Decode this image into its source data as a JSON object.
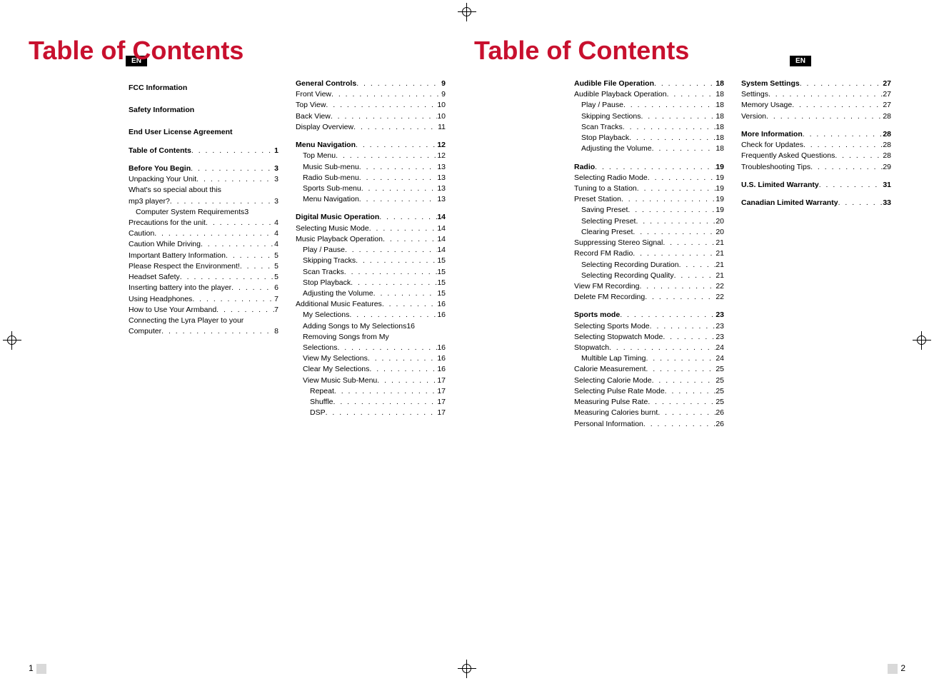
{
  "title": "Table of Contents",
  "en": "EN",
  "pageLeft": "1",
  "pageRight": "2",
  "leftA": [
    {
      "k": "h",
      "t": "FCC Information"
    },
    {
      "k": "sp"
    },
    {
      "k": "h",
      "t": "Safety Information"
    },
    {
      "k": "sp"
    },
    {
      "k": "h",
      "t": "End User License Agreement"
    },
    {
      "k": "sp"
    },
    {
      "k": "hd",
      "t": "Table of Contents",
      "p": "1"
    },
    {
      "k": "sp"
    },
    {
      "k": "hd",
      "t": "Before You Begin",
      "p": "3"
    },
    {
      "k": "e",
      "t": "Unpacking Your Unit",
      "p": "3"
    },
    {
      "k": "e",
      "t": "What's so special about this"
    },
    {
      "k": "e",
      "t": "mp3 player?",
      "p": "3"
    },
    {
      "k": "e",
      "i": 1,
      "t": "Computer System Requirements",
      "p": "3",
      "nodots": true
    },
    {
      "k": "e",
      "t": "Precautions for the unit",
      "p": "4"
    },
    {
      "k": "e",
      "t": "Caution",
      "p": "4"
    },
    {
      "k": "e",
      "t": "Caution While Driving",
      "p": "4"
    },
    {
      "k": "e",
      "t": "Important Battery Information",
      "p": "5"
    },
    {
      "k": "e",
      "t": "Please Respect the Environment!",
      "p": "5"
    },
    {
      "k": "e",
      "t": "Headset Safety",
      "p": "5"
    },
    {
      "k": "e",
      "t": "Inserting battery into the player",
      "p": "6"
    },
    {
      "k": "e",
      "t": "Using Headphones",
      "p": "7"
    },
    {
      "k": "e",
      "t": "How to Use Your Armband",
      "p": "7"
    },
    {
      "k": "e",
      "t": "Connecting the Lyra Player to your"
    },
    {
      "k": "e",
      "t": "Computer",
      "p": "8"
    }
  ],
  "leftB": [
    {
      "k": "hd",
      "t": "General Controls",
      "p": "9"
    },
    {
      "k": "e",
      "t": "Front View",
      "p": "9"
    },
    {
      "k": "e",
      "t": "Top View",
      "p": "10"
    },
    {
      "k": "e",
      "t": "Back View",
      "p": "10"
    },
    {
      "k": "e",
      "t": "Display Overview",
      "p": "11"
    },
    {
      "k": "sp"
    },
    {
      "k": "hd",
      "t": "Menu Navigation",
      "p": "12"
    },
    {
      "k": "e",
      "i": 1,
      "t": "Top Menu",
      "p": "12"
    },
    {
      "k": "e",
      "i": 1,
      "t": "Music Sub-menu",
      "p": "13"
    },
    {
      "k": "e",
      "i": 1,
      "t": "Radio Sub-menu",
      "p": "13"
    },
    {
      "k": "e",
      "i": 1,
      "t": "Sports Sub-menu",
      "p": "13"
    },
    {
      "k": "e",
      "i": 1,
      "t": "Menu Navigation",
      "p": "13"
    },
    {
      "k": "sp"
    },
    {
      "k": "hd",
      "t": "Digital Music Operation",
      "p": "14"
    },
    {
      "k": "e",
      "t": "Selecting Music Mode",
      "p": "14"
    },
    {
      "k": "e",
      "t": "Music Playback Operation",
      "p": "14"
    },
    {
      "k": "e",
      "i": 1,
      "t": "Play / Pause",
      "p": "14"
    },
    {
      "k": "e",
      "i": 1,
      "t": "Skipping Tracks",
      "p": "15"
    },
    {
      "k": "e",
      "i": 1,
      "t": "Scan Tracks",
      "p": "15"
    },
    {
      "k": "e",
      "i": 1,
      "t": "Stop Playback",
      "p": "15"
    },
    {
      "k": "e",
      "i": 1,
      "t": "Adjusting the Volume",
      "p": "15"
    },
    {
      "k": "e",
      "t": "Additional Music Features",
      "p": "16"
    },
    {
      "k": "e",
      "i": 1,
      "t": "My Selections",
      "p": "16"
    },
    {
      "k": "e",
      "i": 1,
      "t": "Adding Songs to My Selections",
      "p": "16",
      "nodots": true
    },
    {
      "k": "e",
      "i": 1,
      "t": "Removing Songs from My"
    },
    {
      "k": "e",
      "i": 1,
      "t": "Selections",
      "p": "16"
    },
    {
      "k": "e",
      "i": 1,
      "t": "View My Selections",
      "p": "16"
    },
    {
      "k": "e",
      "i": 1,
      "t": "Clear My Selections",
      "p": "16"
    },
    {
      "k": "e",
      "i": 1,
      "t": "View Music Sub-Menu",
      "p": "17"
    },
    {
      "k": "e",
      "i": 2,
      "t": "Repeat",
      "p": "17"
    },
    {
      "k": "e",
      "i": 2,
      "t": "Shuffle",
      "p": "17"
    },
    {
      "k": "e",
      "i": 2,
      "t": "DSP",
      "p": "17"
    }
  ],
  "rightA": [
    {
      "k": "hd",
      "t": "Audible File Operation",
      "p": "18"
    },
    {
      "k": "e",
      "t": "Audible Playback Operation",
      "p": "18"
    },
    {
      "k": "e",
      "i": 1,
      "t": "Play / Pause",
      "p": "18"
    },
    {
      "k": "e",
      "i": 1,
      "t": "Skipping Sections",
      "p": "18"
    },
    {
      "k": "e",
      "i": 1,
      "t": "Scan Tracks",
      "p": "18"
    },
    {
      "k": "e",
      "i": 1,
      "t": "Stop Playback",
      "p": "18"
    },
    {
      "k": "e",
      "i": 1,
      "t": "Adjusting the Volume",
      "p": "18"
    },
    {
      "k": "sp"
    },
    {
      "k": "hd",
      "t": "Radio",
      "p": "19"
    },
    {
      "k": "e",
      "t": "Selecting Radio Mode",
      "p": "19"
    },
    {
      "k": "e",
      "t": "Tuning to a Station",
      "p": "19"
    },
    {
      "k": "e",
      "t": "Preset Station",
      "p": "19"
    },
    {
      "k": "e",
      "i": 1,
      "t": "Saving Preset",
      "p": "19"
    },
    {
      "k": "e",
      "i": 1,
      "t": "Selecting Preset",
      "p": "20"
    },
    {
      "k": "e",
      "i": 1,
      "t": "Clearing Preset",
      "p": "20"
    },
    {
      "k": "e",
      "t": "Suppressing Stereo Signal",
      "p": "21"
    },
    {
      "k": "e",
      "t": "Record FM Radio",
      "p": "21"
    },
    {
      "k": "e",
      "i": 1,
      "t": "Selecting Recording Duration",
      "p": "21"
    },
    {
      "k": "e",
      "i": 1,
      "t": "Selecting Recording Quality",
      "p": "21"
    },
    {
      "k": "e",
      "t": "View FM Recording",
      "p": "22"
    },
    {
      "k": "e",
      "t": "Delete FM Recording",
      "p": "22"
    },
    {
      "k": "sp"
    },
    {
      "k": "hd",
      "t": "Sports mode",
      "p": "23"
    },
    {
      "k": "e",
      "t": "Selecting Sports Mode",
      "p": "23"
    },
    {
      "k": "e",
      "t": "Selecting Stopwatch Mode",
      "p": "23"
    },
    {
      "k": "e",
      "t": "Stopwatch",
      "p": "24"
    },
    {
      "k": "e",
      "i": 1,
      "t": "Multible Lap Timing",
      "p": "24"
    },
    {
      "k": "e",
      "t": "Calorie Measurement",
      "p": "25"
    },
    {
      "k": "e",
      "t": "Selecting Calorie Mode",
      "p": "25"
    },
    {
      "k": "e",
      "t": "Selecting Pulse Rate Mode",
      "p": "25"
    },
    {
      "k": "e",
      "t": "Measuring Pulse Rate",
      "p": "25"
    },
    {
      "k": "e",
      "t": "Measuring Calories burnt",
      "p": "26"
    },
    {
      "k": "e",
      "t": "Personal Information",
      "p": "26"
    }
  ],
  "rightB": [
    {
      "k": "hd",
      "t": "System Settings",
      "p": "27"
    },
    {
      "k": "e",
      "t": "Settings",
      "p": "27"
    },
    {
      "k": "e",
      "t": "Memory Usage",
      "p": "27"
    },
    {
      "k": "e",
      "t": "Version",
      "p": "28"
    },
    {
      "k": "sp"
    },
    {
      "k": "hd",
      "t": "More Information",
      "p": "28"
    },
    {
      "k": "e",
      "t": "Check for Updates",
      "p": "28"
    },
    {
      "k": "e",
      "t": "Frequently Asked Questions",
      "p": "28"
    },
    {
      "k": "e",
      "t": "Troubleshooting Tips",
      "p": "29"
    },
    {
      "k": "sp"
    },
    {
      "k": "hd",
      "t": "U.S. Limited Warranty",
      "p": "31"
    },
    {
      "k": "sp"
    },
    {
      "k": "hd",
      "t": "Canadian Limited Warranty",
      "p": "33"
    }
  ]
}
